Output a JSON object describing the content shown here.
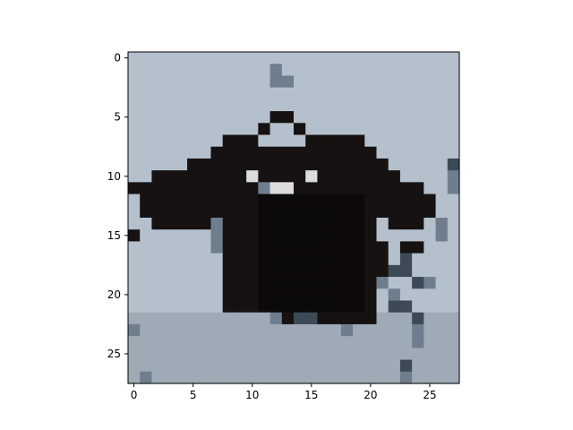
{
  "chart_data": {
    "type": "heatmap",
    "title": "",
    "xlabel": "",
    "ylabel": "",
    "grid": false,
    "xlim": [
      -0.5,
      27.5
    ],
    "ylim": [
      27.5,
      -0.5
    ],
    "x_ticks": [
      0,
      5,
      10,
      15,
      20,
      25
    ],
    "y_ticks": [
      0,
      5,
      10,
      15,
      20,
      25
    ],
    "x_tick_labels": [
      "0",
      "5",
      "10",
      "15",
      "20",
      "25"
    ],
    "y_tick_labels": [
      "0",
      "5",
      "10",
      "15",
      "20",
      "25"
    ],
    "image_shape": [
      28,
      28
    ],
    "subject": "dark short-sleeved shirt on light grey-blue background",
    "palette": {
      "background": "#b4c0cc",
      "background_low": "#9eaab6",
      "shirt": "#161212",
      "shirt_deep": "#0c0909",
      "highlight": "#dcdcdc",
      "slate": "#6e7e8e",
      "dark_slate": "#3c4a56"
    }
  }
}
